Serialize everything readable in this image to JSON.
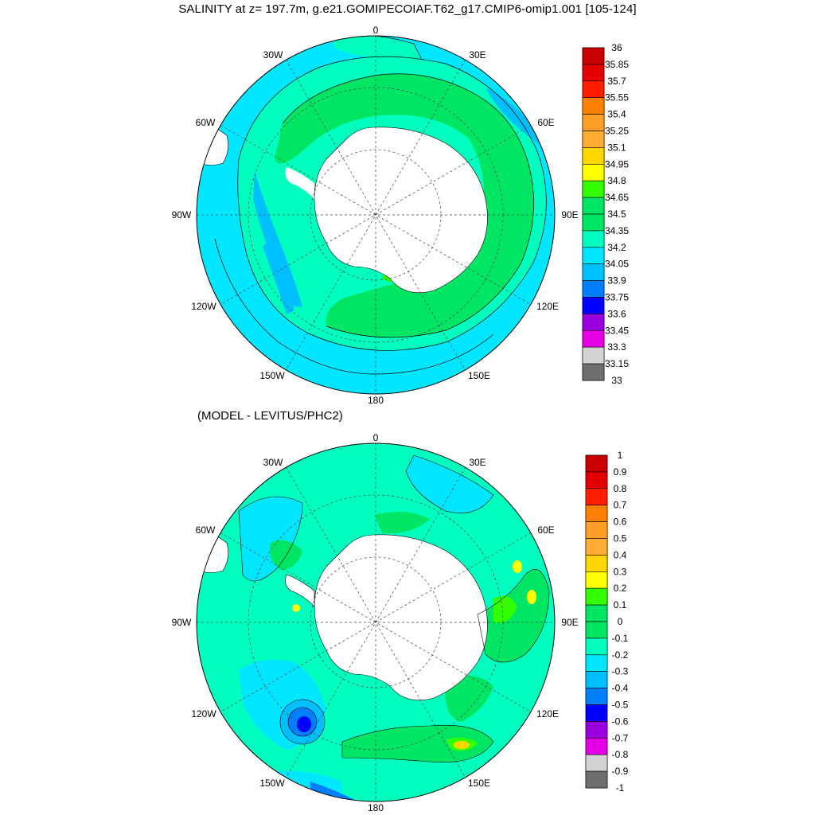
{
  "title": "SALINITY at z= 197.7m, g.e21.GOMIPECOIAF.T62_g17.CMIP6-omip1.001 [105-124]",
  "subtitle": "(MODEL - LEVITUS/PHC2)",
  "longitude_labels": {
    "0": "0",
    "30e": "30E",
    "60e": "60E",
    "90e": "90E",
    "120e": "120E",
    "150e": "150E",
    "180": "180",
    "150w": "150W",
    "120w": "120W",
    "90w": "90W",
    "60w": "60W",
    "30w": "30W"
  },
  "colorbar_top": {
    "labels": [
      "36",
      "35.85",
      "35.7",
      "35.55",
      "35.4",
      "35.25",
      "35.1",
      "34.95",
      "34.8",
      "34.65",
      "34.5",
      "34.35",
      "34.2",
      "34.05",
      "33.9",
      "33.75",
      "33.6",
      "33.45",
      "33.3",
      "33.15",
      "33"
    ],
    "colors": [
      "#c80000",
      "#e30000",
      "#ff1e00",
      "#ff8000",
      "#ff9e28",
      "#ffad35",
      "#ffd700",
      "#ffff00",
      "#33ff00",
      "#00e664",
      "#00ffbf",
      "#00e6ff",
      "#00bfff",
      "#0080ff",
      "#0000ff",
      "#9900dd",
      "#e600e6",
      "#d3d3d3",
      "#6e6e6e"
    ]
  },
  "colorbar_bottom": {
    "labels": [
      "1",
      "0.9",
      "0.8",
      "0.7",
      "0.6",
      "0.5",
      "0.4",
      "0.3",
      "0.2",
      "0.1",
      "0",
      "-0.1",
      "-0.2",
      "-0.3",
      "-0.4",
      "-0.5",
      "-0.6",
      "-0.7",
      "-0.8",
      "-0.9",
      "-1"
    ],
    "colors": [
      "#c80000",
      "#e30000",
      "#ff1e00",
      "#ff8000",
      "#ff9e28",
      "#ffad35",
      "#ffd700",
      "#ffff00",
      "#33ff00",
      "#00e664",
      "#00ffbf",
      "#00e6ff",
      "#00bfff",
      "#0080ff",
      "#0000ff",
      "#9900dd",
      "#e600e6",
      "#d3d3d3",
      "#6e6e6e"
    ]
  }
}
